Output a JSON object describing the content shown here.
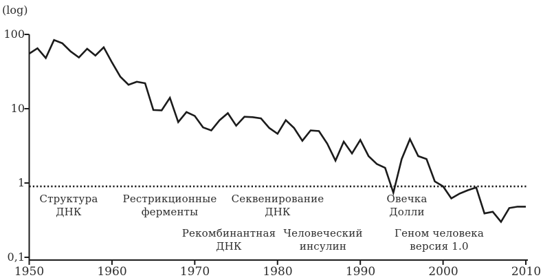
{
  "chart_data": {
    "type": "line",
    "title": "",
    "xlabel": "",
    "ylabel": "(log)",
    "y_scale": "log",
    "ylim": [
      0.1,
      100
    ],
    "xlim": [
      1950,
      2010
    ],
    "grid": false,
    "legend": "none",
    "x_ticks": [
      "1950",
      "1960",
      "1970",
      "1980",
      "1990",
      "2000",
      "2010"
    ],
    "y_ticks": [
      "100",
      "10",
      "1",
      "0,1"
    ],
    "x_start": 1950,
    "x": [
      1950,
      1951,
      1952,
      1953,
      1954,
      1955,
      1956,
      1957,
      1958,
      1959,
      1960,
      1961,
      1962,
      1963,
      1964,
      1965,
      1966,
      1967,
      1968,
      1969,
      1970,
      1971,
      1972,
      1973,
      1974,
      1975,
      1976,
      1977,
      1978,
      1979,
      1980,
      1981,
      1982,
      1983,
      1984,
      1985,
      1986,
      1987,
      1988,
      1989,
      1990,
      1991,
      1992,
      1993,
      1994,
      1995,
      1996,
      1997,
      1998,
      1999,
      2000,
      2001,
      2002,
      2003,
      2004,
      2005,
      2006,
      2007,
      2008,
      2009,
      2010
    ],
    "values": [
      55,
      65,
      48,
      84,
      76,
      59,
      49,
      64,
      52,
      67,
      42,
      27,
      21,
      23,
      22,
      9.6,
      9.5,
      14,
      6.6,
      9,
      8,
      5.6,
      5.1,
      7,
      8.7,
      5.9,
      7.8,
      7.7,
      7.4,
      5.5,
      4.6,
      7,
      5.5,
      3.7,
      5.1,
      5,
      3.4,
      2,
      3.6,
      2.5,
      3.8,
      2.3,
      1.8,
      1.6,
      0.74,
      2.1,
      3.9,
      2.3,
      2.1,
      1.05,
      0.9,
      0.62,
      0.72,
      0.8,
      0.87,
      0.39,
      0.41,
      0.3,
      0.46,
      0.48,
      0.48
    ],
    "threshold_line": {
      "value": 0.9,
      "style": "dotted"
    },
    "annotations": [
      {
        "line1": "Структура",
        "line2": "ДНК",
        "x": 1954.8,
        "row": "upper"
      },
      {
        "line1": "Рестрикционные",
        "line2": "ферменты",
        "x": 1967.0,
        "row": "upper"
      },
      {
        "line1": "Секвенирование",
        "line2": "ДНК",
        "x": 1980.0,
        "row": "upper"
      },
      {
        "line1": "Рекомбинантная",
        "line2": "ДНК",
        "x": 1974.1,
        "row": "lower"
      },
      {
        "line1": "Человеческий",
        "line2": "инсулин",
        "x": 1985.5,
        "row": "lower"
      },
      {
        "line1": "Овечка",
        "line2": "Долли",
        "x": 1995.6,
        "row": "upper"
      },
      {
        "line1": "Геном человека",
        "line2": "версия 1.0",
        "x": 1999.5,
        "row": "lower"
      }
    ],
    "colors": {
      "line": "#1b1b1b",
      "axis": "#1b1b1b",
      "text": "#2d2d2d",
      "background": "#ffffff"
    }
  }
}
